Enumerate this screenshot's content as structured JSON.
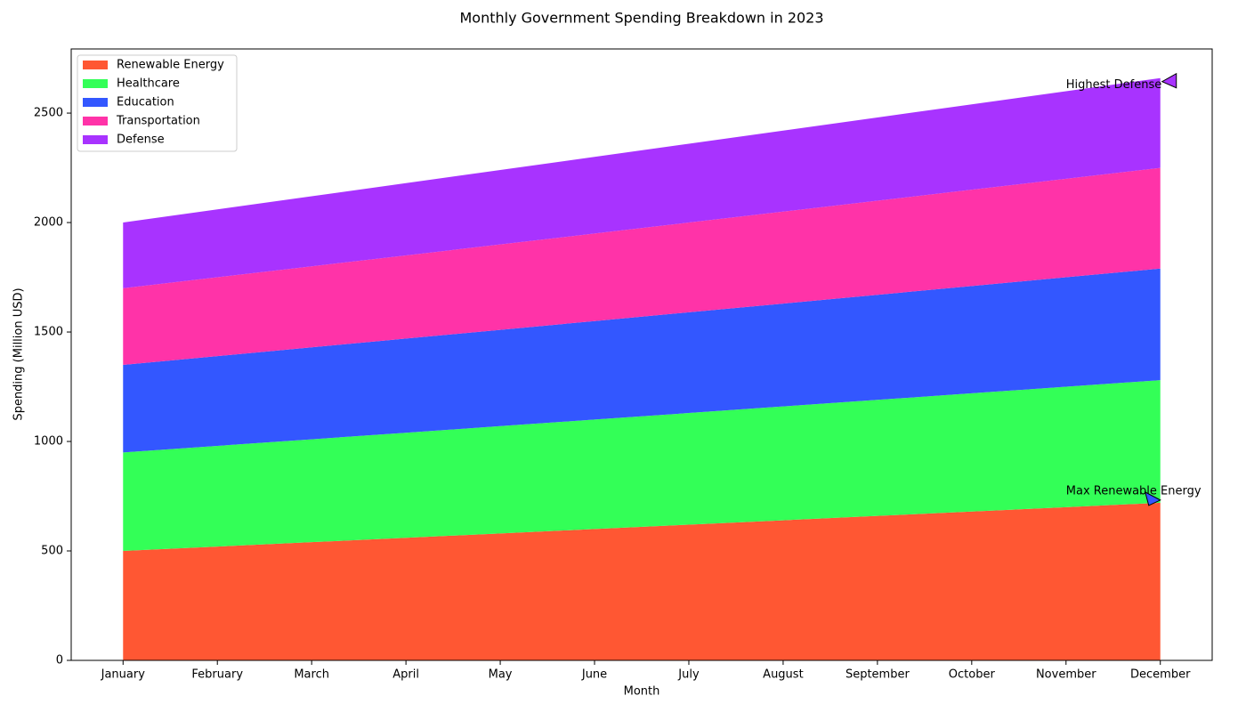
{
  "chart_data": {
    "type": "stacked-area",
    "title": "Monthly Government Spending Breakdown in 2023",
    "x_label": "Month",
    "y_label": "Spending (Million USD)",
    "categories": [
      "January",
      "February",
      "March",
      "April",
      "May",
      "June",
      "July",
      "August",
      "September",
      "October",
      "November",
      "December"
    ],
    "series": [
      {
        "name": "Renewable Energy",
        "color": "#ff5733",
        "values": [
          500,
          520,
          540,
          560,
          580,
          600,
          620,
          640,
          660,
          680,
          700,
          720
        ]
      },
      {
        "name": "Healthcare",
        "color": "#33ff57",
        "values": [
          450,
          460,
          470,
          480,
          490,
          500,
          510,
          520,
          530,
          540,
          550,
          560
        ]
      },
      {
        "name": "Education",
        "color": "#3357ff",
        "values": [
          400,
          410,
          420,
          430,
          440,
          450,
          460,
          470,
          480,
          490,
          500,
          510
        ]
      },
      {
        "name": "Transportation",
        "color": "#ff33a8",
        "values": [
          350,
          360,
          370,
          380,
          390,
          400,
          410,
          420,
          430,
          440,
          450,
          460
        ]
      },
      {
        "name": "Defense",
        "color": "#a833ff",
        "values": [
          300,
          310,
          320,
          330,
          340,
          350,
          360,
          370,
          380,
          390,
          400,
          410
        ]
      }
    ],
    "ylim": [
      0,
      2793
    ],
    "yticks": [
      0,
      500,
      1000,
      1500,
      2000,
      2500
    ],
    "legend": "upper left",
    "annotations": [
      {
        "text": "Highest Defense",
        "color": "#a833ff"
      },
      {
        "text": "Max Renewable Energy",
        "color": "#3357ff"
      }
    ]
  }
}
